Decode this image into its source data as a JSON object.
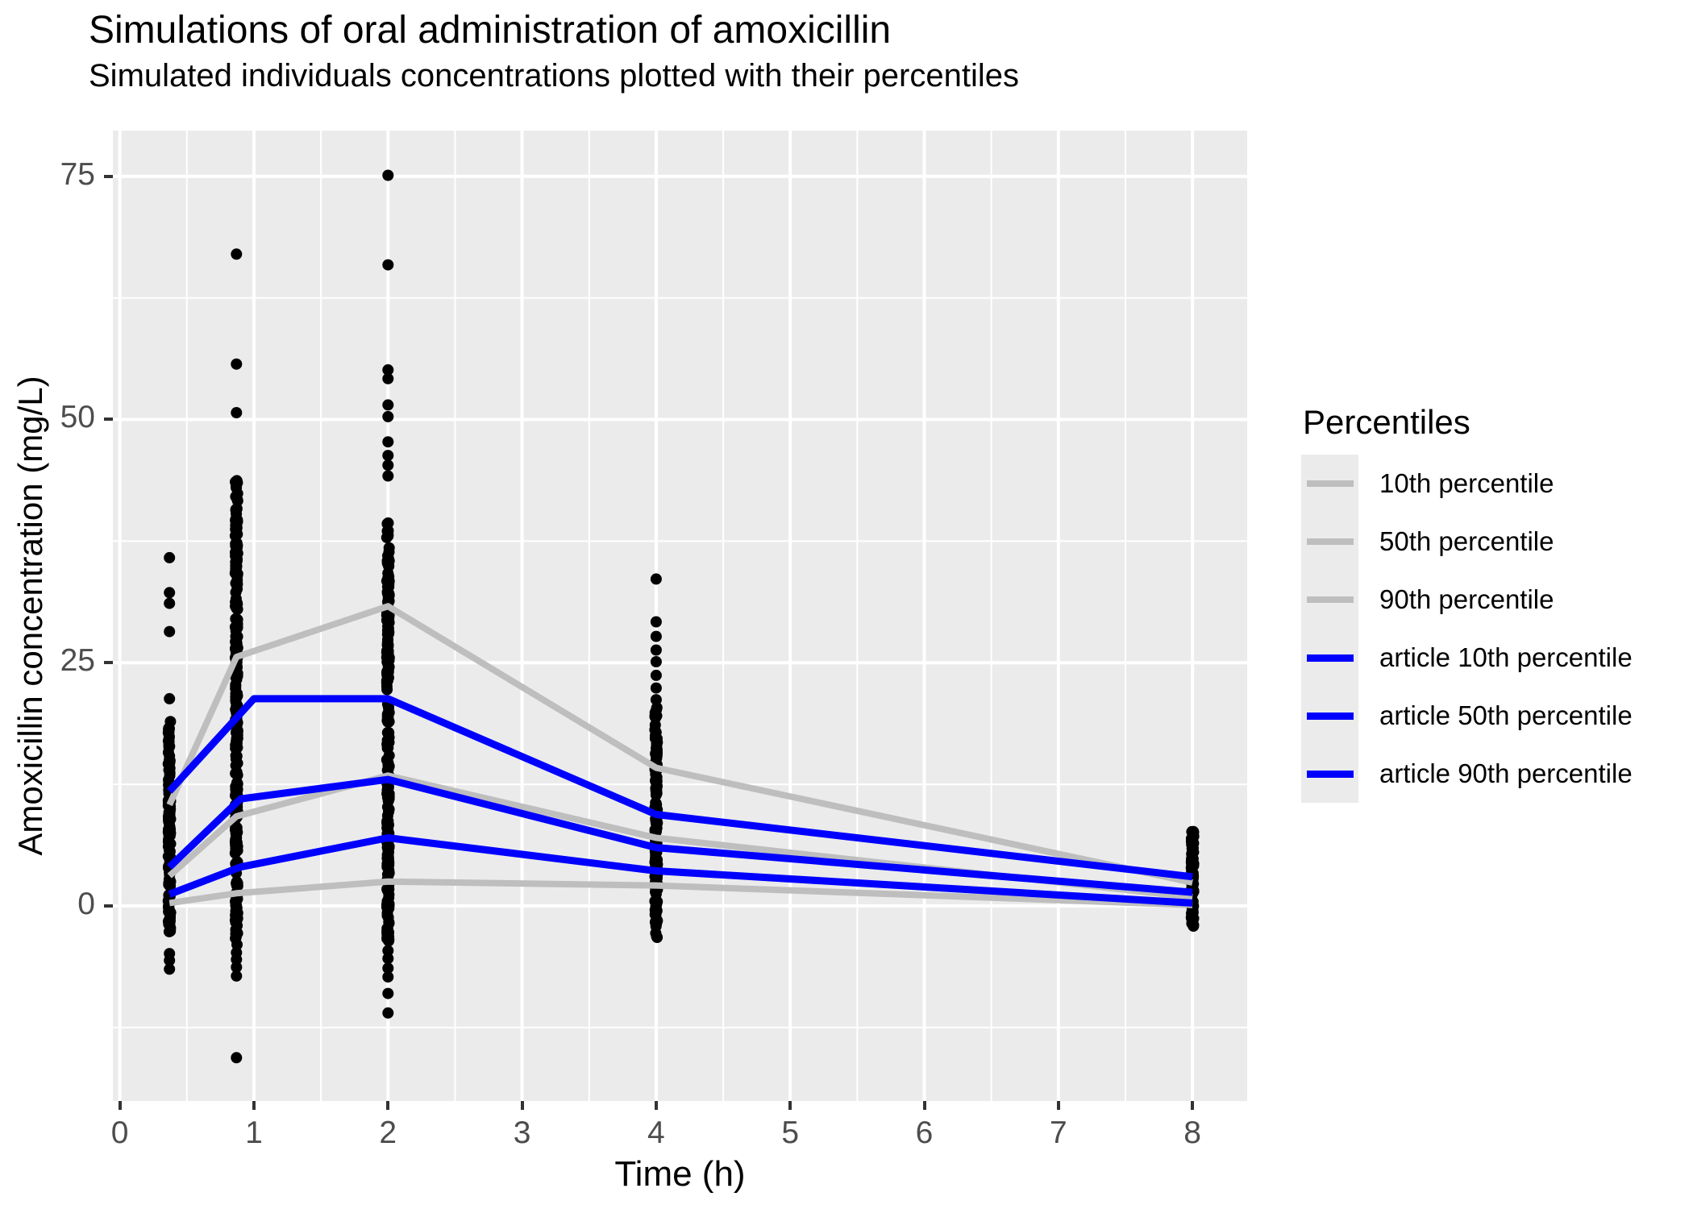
{
  "title": "Simulations of oral administration of amoxicillin",
  "subtitle": "Simulated individuals concentrations plotted with their percentiles",
  "axes": {
    "x": {
      "label": "Time (h)",
      "ticks": [
        0,
        1,
        2,
        3,
        4,
        5,
        6,
        7,
        8
      ],
      "minor_ticks": [
        0.5,
        1.5,
        2.5,
        3.5,
        4.5,
        5.5,
        6.5,
        7.5
      ]
    },
    "y": {
      "label": "Amoxicillin concentration (mg/L)",
      "ticks": [
        0,
        25,
        50,
        75
      ],
      "minor_ticks": [
        -12.5,
        12.5,
        37.5,
        62.5
      ]
    }
  },
  "legend": {
    "title": "Percentiles",
    "items": [
      {
        "label": "10th percentile",
        "color": "gray_line",
        "line_width": 8
      },
      {
        "label": "50th percentile",
        "color": "gray_line",
        "line_width": 8
      },
      {
        "label": "90th percentile",
        "color": "gray_line",
        "line_width": 8
      },
      {
        "label": "article 10th percentile",
        "color": "blue_line",
        "line_width": 9
      },
      {
        "label": "article 50th percentile",
        "color": "blue_line",
        "line_width": 9
      },
      {
        "label": "article 90th percentile",
        "color": "blue_line",
        "line_width": 9
      }
    ]
  },
  "colors": {
    "panel_bg": "#EBEBEB",
    "grid": "#FFFFFF",
    "gray_line": "#BEBEBE",
    "blue_line": "#0000FF",
    "point": "#000000",
    "tick_label": "#4D4D4D",
    "tick_mark": "#333333",
    "legend_key_bg": "#EBEBEB"
  },
  "chart_data": {
    "type": "scatter",
    "title": "Simulations of oral administration of amoxicillin",
    "subtitle": "Simulated individuals concentrations plotted with their percentiles",
    "xlabel": "Time (h)",
    "ylabel": "Amoxicillin concentration (mg/L)",
    "xlim": [
      -0.052,
      8.408
    ],
    "ylim": [
      -20.05,
      79.7
    ],
    "grid": true,
    "legend_position": "right",
    "point_radius": 7,
    "scatter_times": [
      0.37,
      0.87,
      2,
      4,
      8
    ],
    "scatter_columns": [
      {
        "t": 0.37,
        "dense": {
          "min": -3.0,
          "max": 19.0,
          "count": 130
        },
        "outliers": [
          35.8,
          32.2,
          31.1,
          28.2,
          21.3,
          -4.9,
          -5.6,
          -6.5
        ]
      },
      {
        "t": 0.87,
        "dense": {
          "min": -4.0,
          "max": 44.0,
          "count": 280
        },
        "outliers": [
          67.0,
          55.7,
          50.7,
          -4.8,
          -5.5,
          -6.3,
          -7.2,
          -15.6
        ]
      },
      {
        "t": 2,
        "dense": {
          "min": -3.6,
          "max": 40.0,
          "count": 240
        },
        "outliers": [
          75.1,
          65.9,
          55.1,
          54.2,
          51.5,
          50.3,
          47.7,
          46.3,
          45.3,
          44.2,
          -4.6,
          -5.4,
          -6.4,
          -7.3,
          -9.0,
          -11.0
        ]
      },
      {
        "t": 4,
        "dense": {
          "min": -3.3,
          "max": 20.6,
          "count": 150
        },
        "outliers": [
          33.6,
          29.2,
          27.7,
          26.3,
          25.1,
          23.7,
          22.4,
          21.2
        ]
      },
      {
        "t": 8,
        "dense": {
          "min": -2.1,
          "max": 7.8,
          "count": 80
        },
        "outliers": []
      }
    ],
    "series": [
      {
        "name": "10th percentile",
        "color": "gray_line",
        "stroke_width": 8,
        "x": [
          0.37,
          0.87,
          2,
          4,
          8
        ],
        "y": [
          0.3,
          1.3,
          2.5,
          2.1,
          0.1
        ]
      },
      {
        "name": "50th percentile",
        "color": "gray_line",
        "stroke_width": 8,
        "x": [
          0.37,
          0.87,
          2,
          4,
          8
        ],
        "y": [
          3.1,
          9.2,
          13.4,
          7.0,
          0.9
        ]
      },
      {
        "name": "90th percentile",
        "color": "gray_line",
        "stroke_width": 8,
        "x": [
          0.37,
          0.87,
          2,
          4,
          8
        ],
        "y": [
          10.4,
          25.6,
          30.8,
          14.2,
          2.4
        ]
      },
      {
        "name": "article 10th percentile",
        "color": "blue_line",
        "stroke_width": 9,
        "x": [
          0.37,
          0.9,
          2,
          4,
          8
        ],
        "y": [
          1.2,
          4.0,
          7.0,
          3.6,
          0.3
        ]
      },
      {
        "name": "article 50th percentile",
        "color": "blue_line",
        "stroke_width": 9,
        "x": [
          0.37,
          0.9,
          2,
          4,
          8
        ],
        "y": [
          4.0,
          11.0,
          13.0,
          6.0,
          1.4
        ]
      },
      {
        "name": "article 90th percentile",
        "color": "blue_line",
        "stroke_width": 9,
        "x": [
          0.37,
          1,
          2,
          4,
          8
        ],
        "y": [
          11.8,
          21.3,
          21.3,
          9.4,
          3.0
        ]
      }
    ]
  }
}
